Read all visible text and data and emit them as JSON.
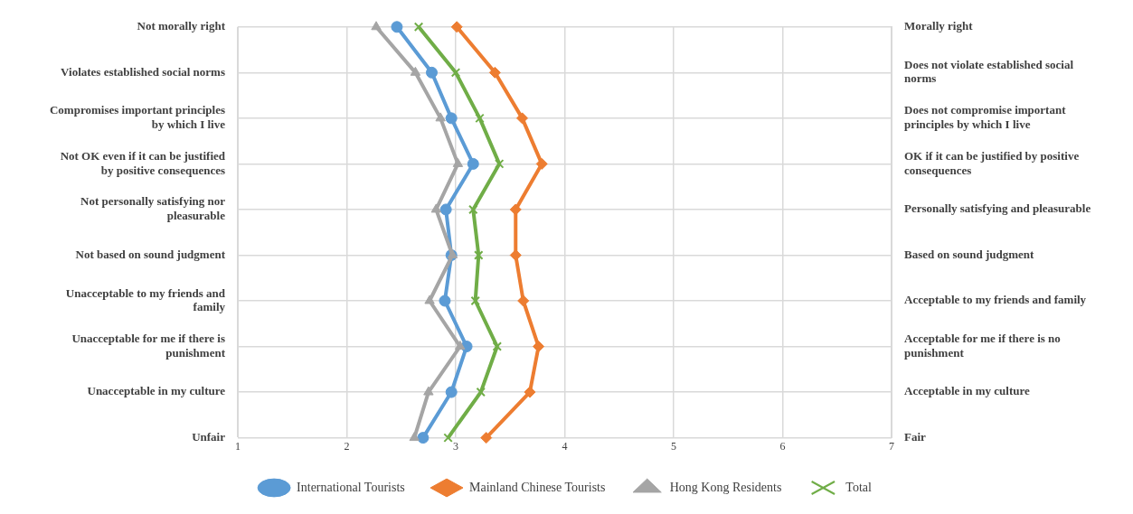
{
  "chart_data": {
    "type": "line",
    "orientation": "horizontal",
    "categories": [
      "Not morally right",
      "Violates established social norms",
      "Compromises important principles by which I live",
      "Not OK even if it can be justified by positive consequences",
      "Not personally satisfying nor pleasurable",
      "Not based on sound judgment",
      "Unacceptable to my friends and family",
      "Unacceptable for me if there is punishment",
      "Unacceptable in my culture",
      "Unfair"
    ],
    "y2_categories": [
      "Morally right",
      "Does not violate established social norms",
      "Does not compromise important principles by which I live",
      "OK if it can be justified by positive consequences",
      "Personally satisfying and pleasurable",
      "Based on sound judgment",
      "Acceptable to my friends and family",
      "Acceptable for me if there is no punishment",
      "Acceptable in my culture",
      "Fair"
    ],
    "xlim": [
      1,
      7
    ],
    "xticks": [
      1,
      2,
      3,
      4,
      5,
      6,
      7
    ],
    "grid": true,
    "legend": "bottom",
    "series": [
      {
        "name": "International Tourists",
        "color": "#5b9bd5",
        "marker": "circle",
        "values": [
          2.46,
          2.78,
          2.96,
          3.16,
          2.91,
          2.96,
          2.9,
          3.1,
          2.96,
          2.7
        ]
      },
      {
        "name": "Mainland Chinese Tourists",
        "color": "#ed7d31",
        "marker": "diamond",
        "values": [
          3.01,
          3.36,
          3.61,
          3.79,
          3.55,
          3.55,
          3.62,
          3.76,
          3.68,
          3.28
        ]
      },
      {
        "name": "Hong Kong Residents",
        "color": "#a5a5a5",
        "marker": "triangle",
        "values": [
          2.27,
          2.63,
          2.86,
          3.02,
          2.82,
          2.97,
          2.76,
          3.04,
          2.75,
          2.62
        ]
      },
      {
        "name": "Total",
        "color": "#70ad47",
        "marker": "cross",
        "values": [
          2.66,
          3.0,
          3.22,
          3.4,
          3.16,
          3.21,
          3.18,
          3.38,
          3.23,
          2.93
        ]
      }
    ]
  }
}
